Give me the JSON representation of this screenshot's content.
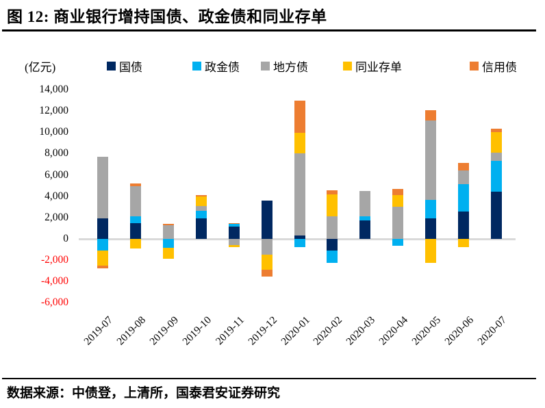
{
  "figure": {
    "title": "图 12:  商业银行增持国债、政金债和同业存单",
    "source": "数据来源：中债登，上清所，国泰君安证券研究"
  },
  "chart_data": {
    "type": "bar",
    "stacked": true,
    "title": "商业银行增持国债、政金债和同业存单",
    "unit_label": "(亿元)",
    "categories": [
      "2019-07",
      "2019-08",
      "2019-09",
      "2019-10",
      "2019-11",
      "2019-12",
      "2020-01",
      "2020-02",
      "2020-03",
      "2020-04",
      "2020-05",
      "2020-06",
      "2020-07"
    ],
    "series": [
      {
        "name": "国债",
        "color": "#002861",
        "values": [
          1900,
          1500,
          0,
          1950,
          1150,
          3600,
          350,
          -1100,
          1750,
          0,
          1950,
          2550,
          4450
        ]
      },
      {
        "name": "政金债",
        "color": "#00B0F0",
        "values": [
          -1100,
          600,
          -850,
          700,
          250,
          0,
          -750,
          -1150,
          400,
          -650,
          1700,
          2600,
          2850
        ]
      },
      {
        "name": "地方债",
        "color": "#A6A6A6",
        "values": [
          5800,
          2850,
          1300,
          450,
          -600,
          -1500,
          7700,
          2100,
          2350,
          3050,
          7450,
          1300,
          800
        ]
      },
      {
        "name": "同业存单",
        "color": "#FFC000",
        "values": [
          -1400,
          -900,
          -1000,
          850,
          -150,
          -1400,
          1900,
          2050,
          0,
          1050,
          -2250,
          -750,
          1900
        ]
      },
      {
        "name": "信用债",
        "color": "#ED7D31",
        "values": [
          -250,
          250,
          100,
          150,
          100,
          -650,
          3000,
          400,
          0,
          600,
          950,
          700,
          350
        ]
      }
    ],
    "ylim": [
      -6000,
      14000
    ],
    "ytick_step": 2000,
    "axis_colors": {
      "positive_tick": "#000000",
      "negative_tick": "#FF0000",
      "zero_line": "#D9D9D9"
    },
    "legend_position": "top",
    "grid": false
  }
}
